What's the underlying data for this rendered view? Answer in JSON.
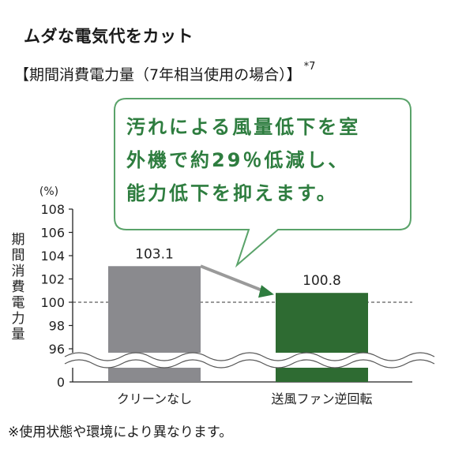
{
  "title": "ムダな電気代をカット",
  "subtitle": "【期間消費電力量（7年相当使用の場合）】",
  "subtitle_note": "*7",
  "callout": {
    "lines": [
      "汚れによる風量低下を室",
      "外機で約29％低減し、",
      "能力低下を抑えます。"
    ],
    "color": "#2e7d3f"
  },
  "footnote": "※使用状態や環境により異なります。",
  "chart_data": {
    "type": "bar",
    "unit_label": "(%)",
    "ylabel": "期間消費電力量",
    "categories": [
      "クリーンなし",
      "送風ファン逆回転"
    ],
    "values": [
      103.1,
      100.8
    ],
    "data_labels": [
      "103.1",
      "100.8"
    ],
    "bar_colors": [
      "#8a8a8e",
      "#2e6b32"
    ],
    "yticks": [
      "108",
      "106",
      "104",
      "102",
      "100",
      "98",
      "96",
      "0"
    ],
    "ylim": [
      95,
      108
    ],
    "axis_break": true,
    "reference_line": 100,
    "arrow_color": "#9a9a9a"
  }
}
